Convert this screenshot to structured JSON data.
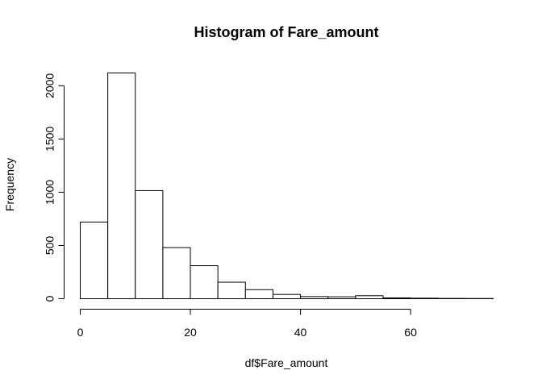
{
  "chart_data": {
    "type": "bar",
    "subtype": "histogram",
    "title": "Histogram of Fare_amount",
    "xlabel": "df$Fare_amount",
    "ylabel": "Frequency",
    "bin_width": 5,
    "bin_edges": [
      0,
      5,
      10,
      15,
      20,
      25,
      30,
      35,
      40,
      45,
      50,
      55,
      60,
      65,
      70,
      75
    ],
    "values": [
      720,
      2120,
      1015,
      480,
      310,
      155,
      85,
      40,
      20,
      18,
      28,
      8,
      5,
      3,
      2
    ],
    "xlim": [
      0,
      75
    ],
    "ylim": [
      0,
      2120
    ],
    "x_ticks": [
      0,
      20,
      40,
      60
    ],
    "y_ticks": [
      0,
      500,
      1000,
      1500,
      2000
    ],
    "grid": false,
    "legend": "none",
    "colors": {
      "bar_fill": "#ffffff",
      "bar_stroke": "#000000",
      "axis": "#000000"
    }
  }
}
